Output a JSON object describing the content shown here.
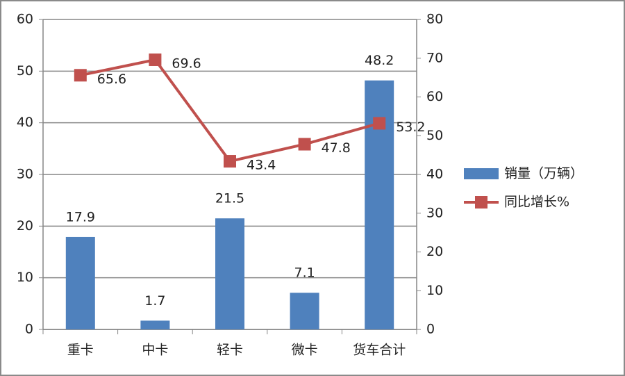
{
  "chart_data": {
    "type": "bar",
    "categories": [
      "重卡",
      "中卡",
      "轻卡",
      "微卡",
      "货车合计"
    ],
    "series": [
      {
        "name": "销量（万辆）",
        "type": "bar",
        "color": "#4f81bd",
        "values": [
          17.9,
          1.7,
          21.5,
          7.1,
          48.2
        ]
      },
      {
        "name": "同比增长%",
        "type": "line",
        "axis": "y2",
        "color": "#c0504d",
        "values": [
          65.6,
          69.6,
          43.4,
          47.8,
          53.2
        ]
      }
    ],
    "ylim": [
      0,
      60
    ],
    "yticks": [
      0,
      10,
      20,
      30,
      40,
      50,
      60
    ],
    "y2lim": [
      0,
      80
    ],
    "y2ticks": [
      0,
      10,
      20,
      30,
      40,
      50,
      60,
      70,
      80
    ],
    "grid": true,
    "legend": "right"
  }
}
